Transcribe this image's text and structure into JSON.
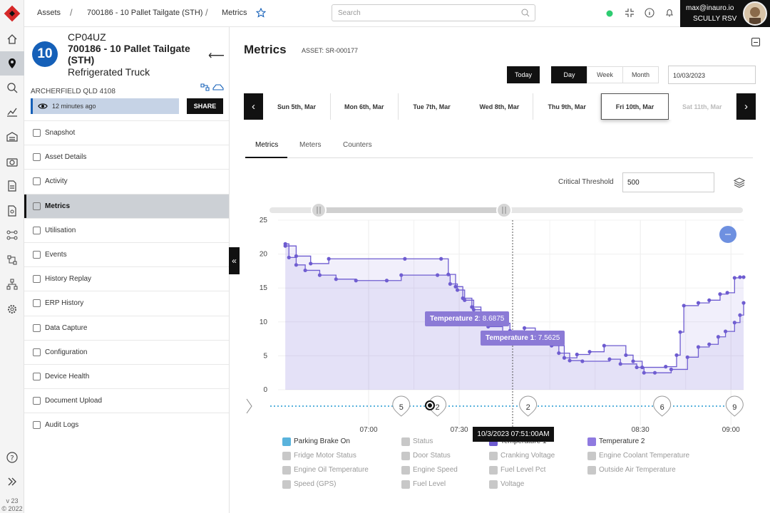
{
  "app": {
    "version": "v 23",
    "copyright": "© 2022"
  },
  "breadcrumb": [
    "Assets",
    "700186 - 10 Pallet Tailgate (STH)",
    "Metrics"
  ],
  "search": {
    "placeholder": "Search"
  },
  "user": {
    "email": "max@inauro.io",
    "org": "SCULLY RSV"
  },
  "asset": {
    "code": "CP04UZ",
    "name": "700186 - 10 Pallet Tailgate (STH)",
    "type": "Refrigerated Truck",
    "badge": "10",
    "location": "ARCHERFIELD QLD 4108",
    "last_seen": "12 minutes ago",
    "share_label": "SHARE"
  },
  "menu": [
    {
      "label": "Snapshot",
      "active": false
    },
    {
      "label": "Asset Details",
      "active": false
    },
    {
      "label": "Activity",
      "active": false
    },
    {
      "label": "Metrics",
      "active": true
    },
    {
      "label": "Utilisation",
      "active": false
    },
    {
      "label": "Events",
      "active": false
    },
    {
      "label": "History Replay",
      "active": false
    },
    {
      "label": "ERP History",
      "active": false
    },
    {
      "label": "Data Capture",
      "active": false
    },
    {
      "label": "Configuration",
      "active": false
    },
    {
      "label": "Device Health",
      "active": false
    },
    {
      "label": "Document Upload",
      "active": false
    },
    {
      "label": "Audit Logs",
      "active": false
    }
  ],
  "main": {
    "title": "Metrics",
    "asset_label": "ASSET: SR-000177",
    "today_label": "Today",
    "ranges": [
      {
        "label": "Day",
        "on": true
      },
      {
        "label": "Week",
        "on": false
      },
      {
        "label": "Month",
        "on": false
      }
    ],
    "date": "10/03/2023",
    "days": [
      {
        "label": "Sun 5th, Mar",
        "state": "normal"
      },
      {
        "label": "Mon 6th, Mar",
        "state": "normal"
      },
      {
        "label": "Tue 7th, Mar",
        "state": "normal"
      },
      {
        "label": "Wed 8th, Mar",
        "state": "normal"
      },
      {
        "label": "Thu 9th, Mar",
        "state": "normal"
      },
      {
        "label": "Fri 10th, Mar",
        "state": "selected"
      },
      {
        "label": "Sat 11th, Mar",
        "state": "disabled"
      }
    ],
    "tabs": [
      "Metrics",
      "Meters",
      "Counters"
    ],
    "threshold_label": "Critical Threshold",
    "threshold_value": "500"
  },
  "chart_data": {
    "type": "area",
    "y_ticks": [
      0,
      5,
      10,
      15,
      20,
      25
    ],
    "ylim": [
      0,
      25
    ],
    "x_tick_labels": [
      {
        "t": 7.0,
        "label": "07:00"
      },
      {
        "t": 7.5,
        "label": "07:30"
      },
      {
        "t": 8.5,
        "label": "08:30"
      },
      {
        "t": 9.0,
        "label": "09:00"
      }
    ],
    "xlim": [
      6.5,
      9.07
    ],
    "grid": true,
    "series": [
      {
        "name": "Temperature 1",
        "color": "#6d5bd0",
        "points": [
          [
            6.54,
            21.5
          ],
          [
            6.56,
            19.5
          ],
          [
            6.6,
            18.4
          ],
          [
            6.65,
            17.6
          ],
          [
            6.73,
            16.9
          ],
          [
            6.82,
            16.3
          ],
          [
            6.93,
            16.1
          ],
          [
            7.1,
            16.1
          ],
          [
            7.18,
            16.9
          ],
          [
            7.38,
            16.9
          ],
          [
            7.45,
            15.6
          ],
          [
            7.49,
            14.7
          ],
          [
            7.53,
            13.2
          ],
          [
            7.58,
            11.8
          ],
          [
            7.62,
            10.5
          ],
          [
            7.66,
            9.3
          ],
          [
            7.74,
            8.0
          ],
          [
            7.86,
            7.5625
          ],
          [
            7.97,
            7.0
          ],
          [
            8.05,
            5.4
          ],
          [
            8.11,
            4.3
          ],
          [
            8.18,
            4.2
          ],
          [
            8.33,
            4.5
          ],
          [
            8.39,
            3.8
          ],
          [
            8.48,
            3.3
          ],
          [
            8.52,
            2.5
          ],
          [
            8.58,
            2.5
          ],
          [
            8.67,
            3.0
          ],
          [
            8.76,
            4.8
          ],
          [
            8.82,
            6.3
          ],
          [
            8.88,
            6.7
          ],
          [
            8.93,
            7.8
          ],
          [
            8.97,
            8.6
          ],
          [
            9.02,
            9.9
          ],
          [
            9.05,
            11.0
          ],
          [
            9.07,
            12.8
          ]
        ]
      },
      {
        "name": "Temperature 2",
        "color": "#6d5bd0",
        "points": [
          [
            6.54,
            21.2
          ],
          [
            6.6,
            19.7
          ],
          [
            6.68,
            18.6
          ],
          [
            6.78,
            19.3
          ],
          [
            7.2,
            19.3
          ],
          [
            7.4,
            19.3
          ],
          [
            7.44,
            17.0
          ],
          [
            7.48,
            15.2
          ],
          [
            7.52,
            13.5
          ],
          [
            7.57,
            12.2
          ],
          [
            7.62,
            11.1
          ],
          [
            7.68,
            9.8
          ],
          [
            7.78,
            8.6875
          ],
          [
            7.86,
            9.1
          ],
          [
            7.92,
            8.5
          ],
          [
            8.01,
            6.5
          ],
          [
            8.08,
            4.7
          ],
          [
            8.15,
            5.2
          ],
          [
            8.22,
            5.6
          ],
          [
            8.3,
            6.5
          ],
          [
            8.42,
            5.1
          ],
          [
            8.46,
            4.2
          ],
          [
            8.51,
            3.3
          ],
          [
            8.64,
            3.4
          ],
          [
            8.7,
            5.1
          ],
          [
            8.72,
            8.5
          ],
          [
            8.74,
            12.4
          ],
          [
            8.82,
            12.8
          ],
          [
            8.88,
            13.2
          ],
          [
            8.94,
            14.1
          ],
          [
            8.98,
            14.3
          ],
          [
            9.02,
            16.5
          ],
          [
            9.05,
            16.6
          ],
          [
            9.07,
            16.6
          ]
        ]
      }
    ],
    "event_markers": [
      {
        "t": 7.18,
        "label": "5"
      },
      {
        "t": 7.38,
        "label": "2"
      },
      {
        "t": 7.88,
        "label": "2"
      },
      {
        "t": 8.62,
        "label": "6"
      },
      {
        "t": 9.02,
        "label": "9"
      }
    ],
    "tooltips": [
      {
        "series": "Temperature 2",
        "value": "8.6875"
      },
      {
        "series": "Temperature 1",
        "value": "7.5625"
      }
    ],
    "cursor_label": "10/3/2023 07:51:00AM",
    "legend": [
      {
        "label": "Parking Brake On",
        "color": "#5ab3dc",
        "active": true
      },
      {
        "label": "Status",
        "color": "#c8c8c8",
        "active": false
      },
      {
        "label": "Temperature 1",
        "color": "#6d5bd0",
        "active": true
      },
      {
        "label": "Temperature 2",
        "color": "#8f7ae0",
        "active": true
      },
      {
        "label": "Fridge Motor Status",
        "color": "#c8c8c8",
        "active": false
      },
      {
        "label": "Door Status",
        "color": "#c8c8c8",
        "active": false
      },
      {
        "label": "Cranking Voltage",
        "color": "#c8c8c8",
        "active": false
      },
      {
        "label": "Engine Coolant Temperature",
        "color": "#c8c8c8",
        "active": false
      },
      {
        "label": "Engine Oil Temperature",
        "color": "#c8c8c8",
        "active": false
      },
      {
        "label": "Engine Speed",
        "color": "#c8c8c8",
        "active": false
      },
      {
        "label": "Fuel Level Pct",
        "color": "#c8c8c8",
        "active": false
      },
      {
        "label": "Outside Air Temperature",
        "color": "#c8c8c8",
        "active": false
      },
      {
        "label": "Speed (GPS)",
        "color": "#c8c8c8",
        "active": false
      },
      {
        "label": "Fuel Level",
        "color": "#c8c8c8",
        "active": false
      },
      {
        "label": "Voltage",
        "color": "#c8c8c8",
        "active": false
      }
    ]
  }
}
